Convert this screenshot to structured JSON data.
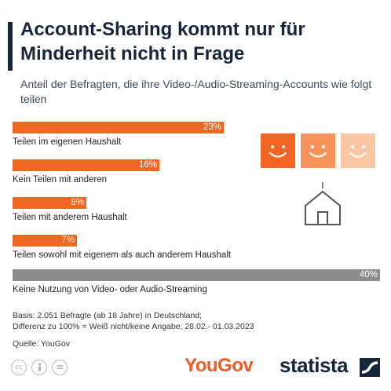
{
  "title": "Account-Sharing kommt nur für Minderheit nicht in Frage",
  "subtitle": "Anteil der Befragten, die ihre Video-/Audio-Streaming-Accounts wie folgt teilen",
  "chart_data": {
    "type": "bar",
    "orientation": "horizontal",
    "categories": [
      "Teilen im eigenen Haushalt",
      "Kein Teilen mit anderen",
      "Teilen mit anderem Haushalt",
      "Teilen sowohl mit eigenem als auch anderem Haushalt",
      "Keine Nutzung von Video- oder Audio-Streaming"
    ],
    "values": [
      23,
      16,
      8,
      7,
      40
    ],
    "value_labels": [
      "23%",
      "16%",
      "8%",
      "7%",
      "40%"
    ],
    "unit": "%",
    "xlim": [
      0,
      40
    ],
    "grid": false,
    "colors": [
      "#f26522",
      "#f26522",
      "#f26522",
      "#f26522",
      "#8c8c8c"
    ]
  },
  "illustration": {
    "faces": [
      {
        "icon": "smiley-face-icon",
        "color": "#f26522"
      },
      {
        "icon": "smiley-face-icon",
        "color": "#f7925a"
      },
      {
        "icon": "smiley-face-icon",
        "color": "#fbc6a4"
      }
    ],
    "house_icon": "house-icon"
  },
  "footnote": {
    "line1": "Basis: 2.051 Befragte (ab 18 Jahre) in Deutschland;",
    "line2": "Differenz zu 100% = Weiß nicht/keine Angabe; 28.02.- 01.03.2023"
  },
  "source": "Quelle: YouGov",
  "license_icons": [
    "cc-icon",
    "person-icon",
    "equals-icon"
  ],
  "logos": {
    "yougov": "YouGov",
    "statista": "statista"
  }
}
